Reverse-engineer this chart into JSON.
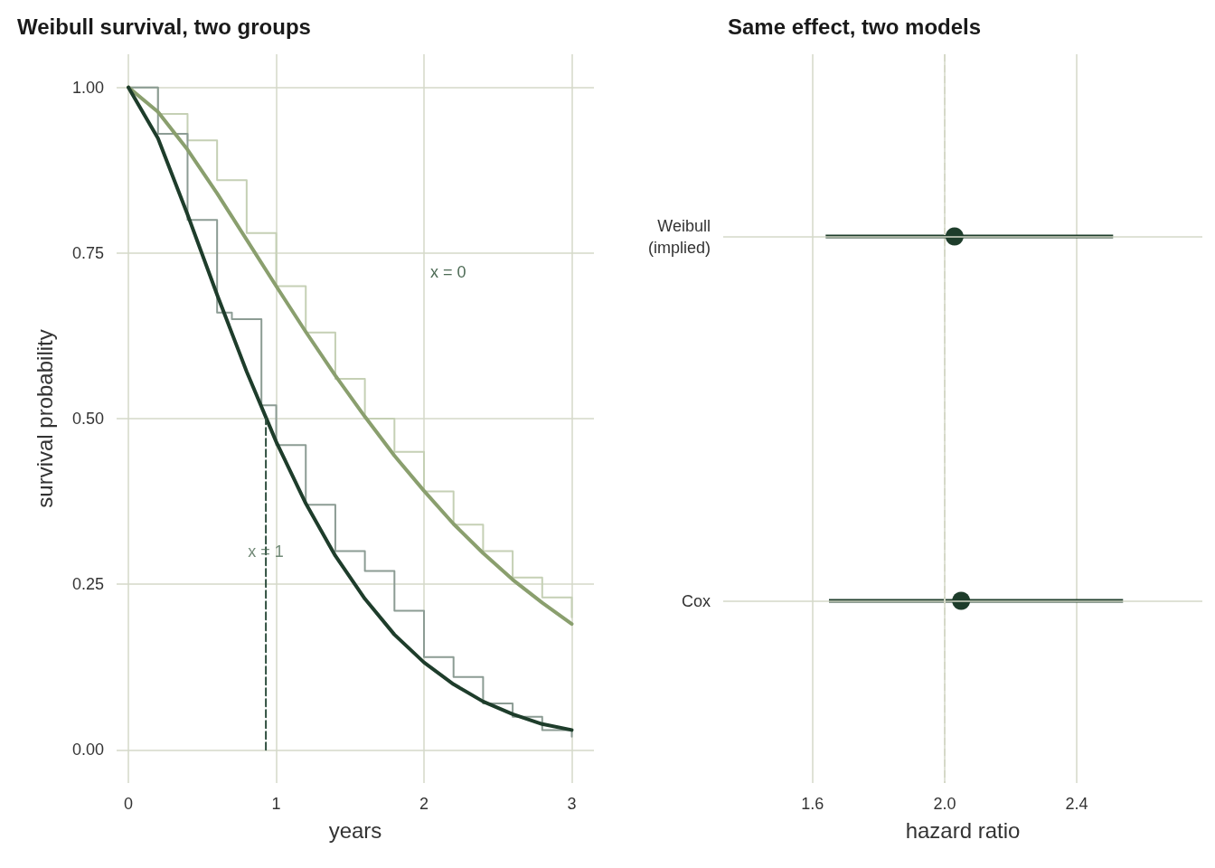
{
  "chart_data": [
    {
      "type": "line",
      "title": "Weibull survival, two groups",
      "xlabel": "years",
      "ylabel": "survival probability",
      "xlim": [
        -0.08,
        3.15
      ],
      "xticks": [
        0,
        1,
        2,
        3
      ],
      "ylim": [
        -0.05,
        1.05
      ],
      "yticks": [
        {
          "value": 0,
          "label": "0.00"
        },
        {
          "value": 0.25,
          "label": "0.25"
        },
        {
          "value": 0.5,
          "label": "0.50"
        },
        {
          "value": 0.75,
          "label": "0.75"
        },
        {
          "value": 1,
          "label": "1.00"
        }
      ],
      "grid": true,
      "series": [
        {
          "type": "step",
          "color": "#c5d0b5",
          "x": [
            0,
            0.2,
            0.4,
            0.6,
            0.8,
            1.0,
            1.2,
            1.4,
            1.6,
            1.8,
            2.0,
            2.2,
            2.4,
            2.6,
            2.8,
            3.0
          ],
          "values": [
            1,
            0.96,
            0.92,
            0.86,
            0.78,
            0.7,
            0.63,
            0.56,
            0.5,
            0.45,
            0.39,
            0.34,
            0.3,
            0.26,
            0.23,
            0.2
          ]
        },
        {
          "type": "step",
          "color": "#8c9c94",
          "x": [
            0,
            0.2,
            0.4,
            0.6,
            0.7,
            0.9,
            1.0,
            1.2,
            1.4,
            1.6,
            1.8,
            2.0,
            2.2,
            2.4,
            2.6,
            2.8,
            3.0
          ],
          "values": [
            1,
            0.93,
            0.8,
            0.66,
            0.65,
            0.52,
            0.46,
            0.37,
            0.3,
            0.27,
            0.21,
            0.14,
            0.11,
            0.07,
            0.05,
            0.03,
            0.02
          ]
        },
        {
          "color": "#8a9f6e",
          "x": [
            0,
            0.2,
            0.4,
            0.6,
            0.8,
            1.0,
            1.2,
            1.4,
            1.6,
            1.8,
            2.0,
            2.2,
            2.4,
            2.6,
            2.8,
            3.0
          ],
          "values": [
            1,
            0.963,
            0.906,
            0.84,
            0.77,
            0.7,
            0.631,
            0.565,
            0.503,
            0.444,
            0.391,
            0.341,
            0.297,
            0.257,
            0.222,
            0.19
          ]
        },
        {
          "color": "#1e3d2b",
          "x": [
            0,
            0.2,
            0.4,
            0.6,
            0.8,
            1.0,
            1.2,
            1.4,
            1.6,
            1.8,
            2.0,
            2.2,
            2.4,
            2.6,
            2.8,
            3.0
          ],
          "values": [
            1,
            0.923,
            0.808,
            0.687,
            0.571,
            0.465,
            0.372,
            0.293,
            0.228,
            0.174,
            0.132,
            0.099,
            0.073,
            0.054,
            0.039,
            0.03
          ]
        },
        {
          "color": "#2f4f3f",
          "line_style": "dashed",
          "x": [
            0.93,
            0.93
          ],
          "values": [
            0,
            0.5
          ]
        }
      ],
      "annotations": [
        "x = 0",
        {
          "text": "x = 1",
          "x": 0.93,
          "y": 0.3
        }
      ]
    },
    {
      "type": "scatter",
      "orientation": "horizontal",
      "title": "Same effect, two models",
      "xlabel": "hazard ratio",
      "categories": [
        "Weibull\n(implied)",
        "Cox"
      ],
      "xlim": [
        1.33,
        2.78
      ],
      "xticks": [
        1.6,
        {
          "value": 2,
          "label": "2.0"
        },
        2.4
      ],
      "grid": true,
      "marker": "circle",
      "series": [
        {
          "color": "#1e3d2b",
          "values": [
            2.03,
            2.05
          ],
          "errors": [
            [
              1.64,
              2.51
            ],
            [
              1.65,
              2.54
            ]
          ]
        }
      ],
      "ref_lines": [
        {
          "axis": "x",
          "value": 2.0,
          "color": "#d5d9c8",
          "line_style": "dashed"
        }
      ]
    }
  ]
}
